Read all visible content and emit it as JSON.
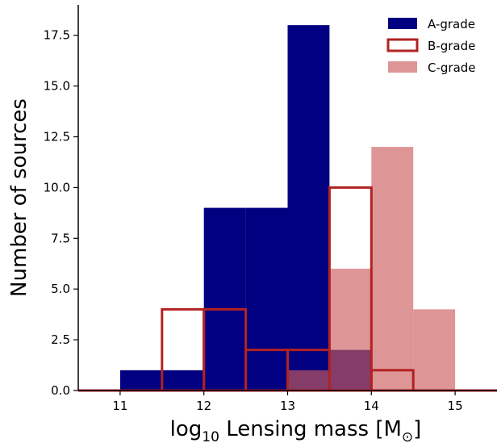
{
  "chart_data": {
    "type": "histogram",
    "xlabel": {
      "main": "log",
      "sub": "10",
      "rest": " Lensing mass [M",
      "sym": "⊙",
      "end": "]"
    },
    "ylabel": "Number of sources",
    "xlim": [
      10.5,
      15.5
    ],
    "ylim": [
      0,
      19
    ],
    "x_ticks": [
      11,
      12,
      13,
      14,
      15
    ],
    "x_tick_labels": [
      "11",
      "12",
      "13",
      "14",
      "15"
    ],
    "y_ticks": [
      0,
      2.5,
      5,
      7.5,
      10,
      12.5,
      15,
      17.5
    ],
    "y_tick_labels": [
      "0.0",
      "2.5",
      "5.0",
      "7.5",
      "10.0",
      "12.5",
      "15.0",
      "17.5"
    ],
    "bin_edges": [
      10.5,
      11,
      11.5,
      12,
      12.5,
      13,
      13.5,
      14,
      14.5,
      15,
      15.5
    ],
    "series": [
      {
        "name": "A-grade",
        "style": "filled",
        "color": "#000080",
        "values": [
          0,
          1,
          1,
          9,
          9,
          18,
          2,
          0,
          0,
          0
        ]
      },
      {
        "name": "B-grade",
        "style": "step-outline",
        "color": "#b22222",
        "values": [
          0,
          0,
          4,
          4,
          2,
          2,
          10,
          1,
          0,
          0
        ]
      },
      {
        "name": "C-grade",
        "style": "filled-alpha",
        "color": "#cd5c5c",
        "alpha": 0.65,
        "values": [
          0,
          0,
          0,
          0,
          0,
          1,
          6,
          12,
          4,
          0
        ]
      }
    ],
    "legend": {
      "position": "top-right"
    },
    "grid": false
  }
}
